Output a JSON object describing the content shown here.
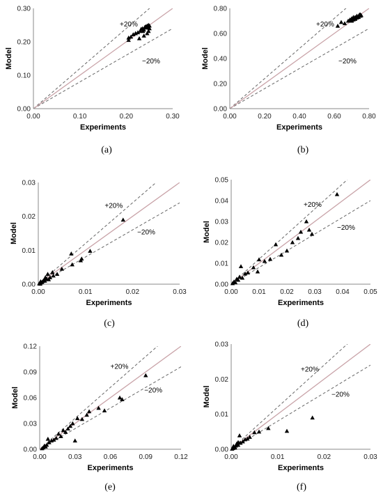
{
  "figure": {
    "xlabel": "Experiments",
    "ylabel": "Model",
    "band_labels": {
      "upper": "+20%",
      "lower": "−20%"
    },
    "colors": {
      "identity_line": "#c9a3a8",
      "band_lines": "#666666",
      "axis": "#888888",
      "markers": "#000000"
    },
    "marker_shape": "triangle-up"
  },
  "chart_data": [
    {
      "caption": "(a)",
      "type": "scatter",
      "xlabel": "Experiments",
      "ylabel": "Model",
      "xlim": [
        0,
        0.3
      ],
      "ylim": [
        0,
        0.3
      ],
      "xticks": [
        "0.00",
        "0.10",
        "0.20",
        "0.30"
      ],
      "yticks": [
        "0.00",
        "0.10",
        "0.20",
        "0.30"
      ],
      "reference_lines": [
        "y = x",
        "y = 1.2x (+20%)",
        "y = 0.8x (−20%)"
      ],
      "points": [
        [
          0.205,
          0.205
        ],
        [
          0.205,
          0.212
        ],
        [
          0.21,
          0.215
        ],
        [
          0.215,
          0.222
        ],
        [
          0.22,
          0.225
        ],
        [
          0.225,
          0.228
        ],
        [
          0.23,
          0.232
        ],
        [
          0.232,
          0.238
        ],
        [
          0.235,
          0.24
        ],
        [
          0.238,
          0.236
        ],
        [
          0.24,
          0.244
        ],
        [
          0.242,
          0.246
        ],
        [
          0.245,
          0.248
        ],
        [
          0.246,
          0.244
        ],
        [
          0.248,
          0.25
        ],
        [
          0.25,
          0.248
        ],
        [
          0.243,
          0.242
        ],
        [
          0.236,
          0.232
        ],
        [
          0.228,
          0.21
        ],
        [
          0.238,
          0.218
        ],
        [
          0.245,
          0.225
        ],
        [
          0.248,
          0.232
        ],
        [
          0.22,
          0.225
        ],
        [
          0.25,
          0.24
        ]
      ],
      "grid": false,
      "legend": "none"
    },
    {
      "caption": "(b)",
      "type": "scatter",
      "xlabel": "Experiments",
      "ylabel": "Model",
      "xlim": [
        0,
        0.8
      ],
      "ylim": [
        0,
        0.8
      ],
      "xticks": [
        "0.00",
        "0.20",
        "0.40",
        "0.60",
        "0.80"
      ],
      "yticks": [
        "0.00",
        "0.20",
        "0.40",
        "0.60",
        "0.80"
      ],
      "reference_lines": [
        "y = x",
        "y = 1.2x (+20%)",
        "y = 0.8x (−20%)"
      ],
      "points": [
        [
          0.62,
          0.66
        ],
        [
          0.64,
          0.69
        ],
        [
          0.66,
          0.68
        ],
        [
          0.68,
          0.7
        ],
        [
          0.69,
          0.71
        ],
        [
          0.7,
          0.7
        ],
        [
          0.7,
          0.72
        ],
        [
          0.71,
          0.71
        ],
        [
          0.71,
          0.73
        ],
        [
          0.72,
          0.72
        ],
        [
          0.72,
          0.73
        ],
        [
          0.73,
          0.73
        ],
        [
          0.73,
          0.74
        ],
        [
          0.74,
          0.74
        ],
        [
          0.74,
          0.73
        ],
        [
          0.745,
          0.75
        ],
        [
          0.75,
          0.74
        ],
        [
          0.75,
          0.75
        ],
        [
          0.755,
          0.745
        ],
        [
          0.7,
          0.705
        ],
        [
          0.72,
          0.715
        ],
        [
          0.73,
          0.725
        ]
      ],
      "grid": false,
      "legend": "none"
    },
    {
      "caption": "(c)",
      "type": "scatter",
      "xlabel": "Experiments",
      "ylabel": "Model",
      "xlim": [
        0,
        0.03
      ],
      "ylim": [
        0,
        0.03
      ],
      "xticks": [
        "0.00",
        "0.01",
        "0.02",
        "0.03"
      ],
      "yticks": [
        "0.00",
        "0.01",
        "0.02",
        "0.03"
      ],
      "reference_lines": [
        "y = x",
        "y = 1.2x (+20%)",
        "y = 0.8x (−20%)"
      ],
      "points": [
        [
          0.0002,
          0.0002
        ],
        [
          0.0004,
          0.0001
        ],
        [
          0.0005,
          0.0004
        ],
        [
          0.0008,
          0.0006
        ],
        [
          0.001,
          0.0009
        ],
        [
          0.0012,
          0.0012
        ],
        [
          0.0015,
          0.002
        ],
        [
          0.0018,
          0.0015
        ],
        [
          0.002,
          0.003
        ],
        [
          0.0022,
          0.0014
        ],
        [
          0.0025,
          0.002
        ],
        [
          0.003,
          0.0035
        ],
        [
          0.0032,
          0.0025
        ],
        [
          0.004,
          0.003
        ],
        [
          0.005,
          0.0045
        ],
        [
          0.007,
          0.009
        ],
        [
          0.0072,
          0.0058
        ],
        [
          0.009,
          0.007
        ],
        [
          0.0092,
          0.0075
        ],
        [
          0.011,
          0.0098
        ],
        [
          0.018,
          0.019
        ],
        [
          0.0005,
          0.0008
        ],
        [
          0.0014,
          0.001
        ]
      ],
      "grid": false,
      "legend": "none"
    },
    {
      "caption": "(d)",
      "type": "scatter",
      "xlabel": "Experiments",
      "ylabel": "Model",
      "xlim": [
        0,
        0.05
      ],
      "ylim": [
        0,
        0.05
      ],
      "xticks": [
        "0.00",
        "0.01",
        "0.02",
        "0.03",
        "0.04",
        "0.05"
      ],
      "yticks": [
        "0.00",
        "0.01",
        "0.02",
        "0.03",
        "0.04",
        "0.05"
      ],
      "reference_lines": [
        "y = x",
        "y = 1.2x (+20%)",
        "y = 0.8x (−20%)"
      ],
      "points": [
        [
          0.0005,
          0.0004
        ],
        [
          0.001,
          0.0012
        ],
        [
          0.0015,
          0.0008
        ],
        [
          0.002,
          0.0025
        ],
        [
          0.0025,
          0.002
        ],
        [
          0.003,
          0.0035
        ],
        [
          0.0035,
          0.0085
        ],
        [
          0.004,
          0.003
        ],
        [
          0.005,
          0.005
        ],
        [
          0.006,
          0.0055
        ],
        [
          0.008,
          0.008
        ],
        [
          0.0095,
          0.006
        ],
        [
          0.01,
          0.0118
        ],
        [
          0.012,
          0.011
        ],
        [
          0.014,
          0.012
        ],
        [
          0.016,
          0.019
        ],
        [
          0.018,
          0.014
        ],
        [
          0.02,
          0.016
        ],
        [
          0.022,
          0.02
        ],
        [
          0.024,
          0.022
        ],
        [
          0.025,
          0.025
        ],
        [
          0.027,
          0.03
        ],
        [
          0.028,
          0.026
        ],
        [
          0.029,
          0.024
        ],
        [
          0.038,
          0.043
        ]
      ],
      "grid": false,
      "legend": "none"
    },
    {
      "caption": "(e)",
      "type": "scatter",
      "xlabel": "Experiments",
      "ylabel": "Model",
      "xlim": [
        0,
        0.12
      ],
      "ylim": [
        0,
        0.12
      ],
      "xticks": [
        "0.00",
        "0.03",
        "0.06",
        "0.09",
        "0.12"
      ],
      "yticks": [
        "0.00",
        "0.03",
        "0.06",
        "0.09",
        "0.12"
      ],
      "reference_lines": [
        "y = x",
        "y = 1.2x (+20%)",
        "y = 0.8x (−20%)"
      ],
      "points": [
        [
          0.002,
          0.001
        ],
        [
          0.003,
          0.002
        ],
        [
          0.004,
          0.004
        ],
        [
          0.005,
          0.003
        ],
        [
          0.006,
          0.005
        ],
        [
          0.007,
          0.012
        ],
        [
          0.008,
          0.008
        ],
        [
          0.01,
          0.01
        ],
        [
          0.012,
          0.011
        ],
        [
          0.014,
          0.013
        ],
        [
          0.016,
          0.018
        ],
        [
          0.018,
          0.015
        ],
        [
          0.02,
          0.022
        ],
        [
          0.022,
          0.02
        ],
        [
          0.024,
          0.024
        ],
        [
          0.026,
          0.027
        ],
        [
          0.028,
          0.03
        ],
        [
          0.03,
          0.01
        ],
        [
          0.032,
          0.036
        ],
        [
          0.036,
          0.035
        ],
        [
          0.04,
          0.04
        ],
        [
          0.042,
          0.044
        ],
        [
          0.05,
          0.048
        ],
        [
          0.055,
          0.045
        ],
        [
          0.068,
          0.06
        ],
        [
          0.07,
          0.058
        ],
        [
          0.09,
          0.086
        ]
      ],
      "grid": false,
      "legend": "none"
    },
    {
      "caption": "(f)",
      "type": "scatter",
      "xlabel": "Experiments",
      "ylabel": "Model",
      "xlim": [
        0,
        0.03
      ],
      "ylim": [
        0,
        0.03
      ],
      "xticks": [
        "0.00",
        "0.01",
        "0.02",
        "0.03"
      ],
      "yticks": [
        "0.00",
        "0.01",
        "0.02",
        "0.03"
      ],
      "reference_lines": [
        "y = x",
        "y = 1.2x (+20%)",
        "y = 0.8x (−20%)"
      ],
      "points": [
        [
          0.0002,
          0.0001
        ],
        [
          0.0004,
          0.0003
        ],
        [
          0.0005,
          0.0009
        ],
        [
          0.0008,
          0.0006
        ],
        [
          0.001,
          0.001
        ],
        [
          0.0012,
          0.0016
        ],
        [
          0.0015,
          0.0012
        ],
        [
          0.0018,
          0.0039
        ],
        [
          0.002,
          0.0018
        ],
        [
          0.0025,
          0.0022
        ],
        [
          0.003,
          0.0028
        ],
        [
          0.0035,
          0.003
        ],
        [
          0.004,
          0.0035
        ],
        [
          0.005,
          0.0048
        ],
        [
          0.006,
          0.005
        ],
        [
          0.008,
          0.006
        ],
        [
          0.012,
          0.0052
        ],
        [
          0.0175,
          0.009
        ],
        [
          0.0008,
          0.0004
        ],
        [
          0.0015,
          0.002
        ]
      ],
      "grid": false,
      "legend": "none"
    }
  ]
}
